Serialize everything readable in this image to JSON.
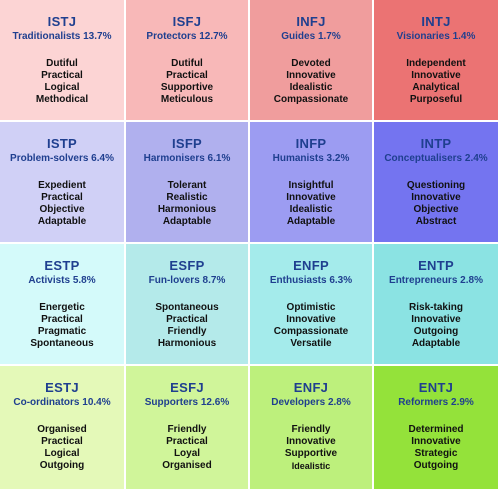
{
  "types": [
    {
      "code": "ISTJ",
      "label": "Traditionalists 13.7%",
      "traits": [
        "Dutiful",
        "Practical",
        "Logical",
        "Methodical"
      ],
      "color": "#fcd4d4"
    },
    {
      "code": "ISFJ",
      "label": "Protectors 12.7%",
      "traits": [
        "Dutiful",
        "Practical",
        "Supportive",
        "Meticulous"
      ],
      "color": "#f8b8b8"
    },
    {
      "code": "INFJ",
      "label": "Guides 1.7%",
      "traits": [
        "Devoted",
        "Innovative",
        "Idealistic",
        "Compassionate"
      ],
      "color": "#f09d9d"
    },
    {
      "code": "INTJ",
      "label": "Visionaries 1.4%",
      "traits": [
        "Independent",
        "Innovative",
        "Analytical",
        "Purposeful"
      ],
      "color": "#eb7373"
    },
    {
      "code": "ISTP",
      "label": "Problem-solvers 6.4%",
      "traits": [
        "Expedient",
        "Practical",
        "Objective",
        "Adaptable"
      ],
      "color": "#d0d0f6"
    },
    {
      "code": "ISFP",
      "label": "Harmonisers 6.1%",
      "traits": [
        "Tolerant",
        "Realistic",
        "Harmonious",
        "Adaptable"
      ],
      "color": "#b0b0ee"
    },
    {
      "code": "INFP",
      "label": "Humanists 3.2%",
      "traits": [
        "Insightful",
        "Innovative",
        "Idealistic",
        "Adaptable"
      ],
      "color": "#9c9cf2"
    },
    {
      "code": "INTP",
      "label": "Conceptualisers 2.4%",
      "traits": [
        "Questioning",
        "Innovative",
        "Objective",
        "Abstract"
      ],
      "color": "#7474f0"
    },
    {
      "code": "ESTP",
      "label": "Activists 5.8%",
      "traits": [
        "Energetic",
        "Practical",
        "Pragmatic",
        "Spontaneous"
      ],
      "color": "#d4fafa"
    },
    {
      "code": "ESFP",
      "label": "Fun-lovers 8.7%",
      "traits": [
        "Spontaneous",
        "Practical",
        "Friendly",
        "Harmonious"
      ],
      "color": "#b4eaea"
    },
    {
      "code": "ENFP",
      "label": "Enthusiasts 6.3%",
      "traits": [
        "Optimistic",
        "Innovative",
        "Compassionate",
        "Versatile"
      ],
      "color": "#a4ebeb"
    },
    {
      "code": "ENTP",
      "label": "Entrepreneurs 2.8%",
      "traits": [
        "Risk-taking",
        "Innovative",
        "Outgoing",
        "Adaptable"
      ],
      "color": "#8be3e3"
    },
    {
      "code": "ESTJ",
      "label": "Co-ordinators 10.4%",
      "traits": [
        "Organised",
        "Practical",
        "Logical",
        "Outgoing"
      ],
      "color": "#e4f9b8"
    },
    {
      "code": "ESFJ",
      "label": "Supporters 12.6%",
      "traits": [
        "Friendly",
        "Practical",
        "Loyal",
        "Organised"
      ],
      "color": "#d0f59a"
    },
    {
      "code": "ENFJ",
      "label": "Developers 2.8%",
      "traits": [
        "Friendly",
        "Innovative",
        "Supportive",
        "Idealistic"
      ],
      "color": "#bdf07c"
    },
    {
      "code": "ENTJ",
      "label": "Reformers 2.9%",
      "traits": [
        "Determined",
        "Innovative",
        "Strategic",
        "Outgoing"
      ],
      "color": "#94e23a"
    }
  ]
}
